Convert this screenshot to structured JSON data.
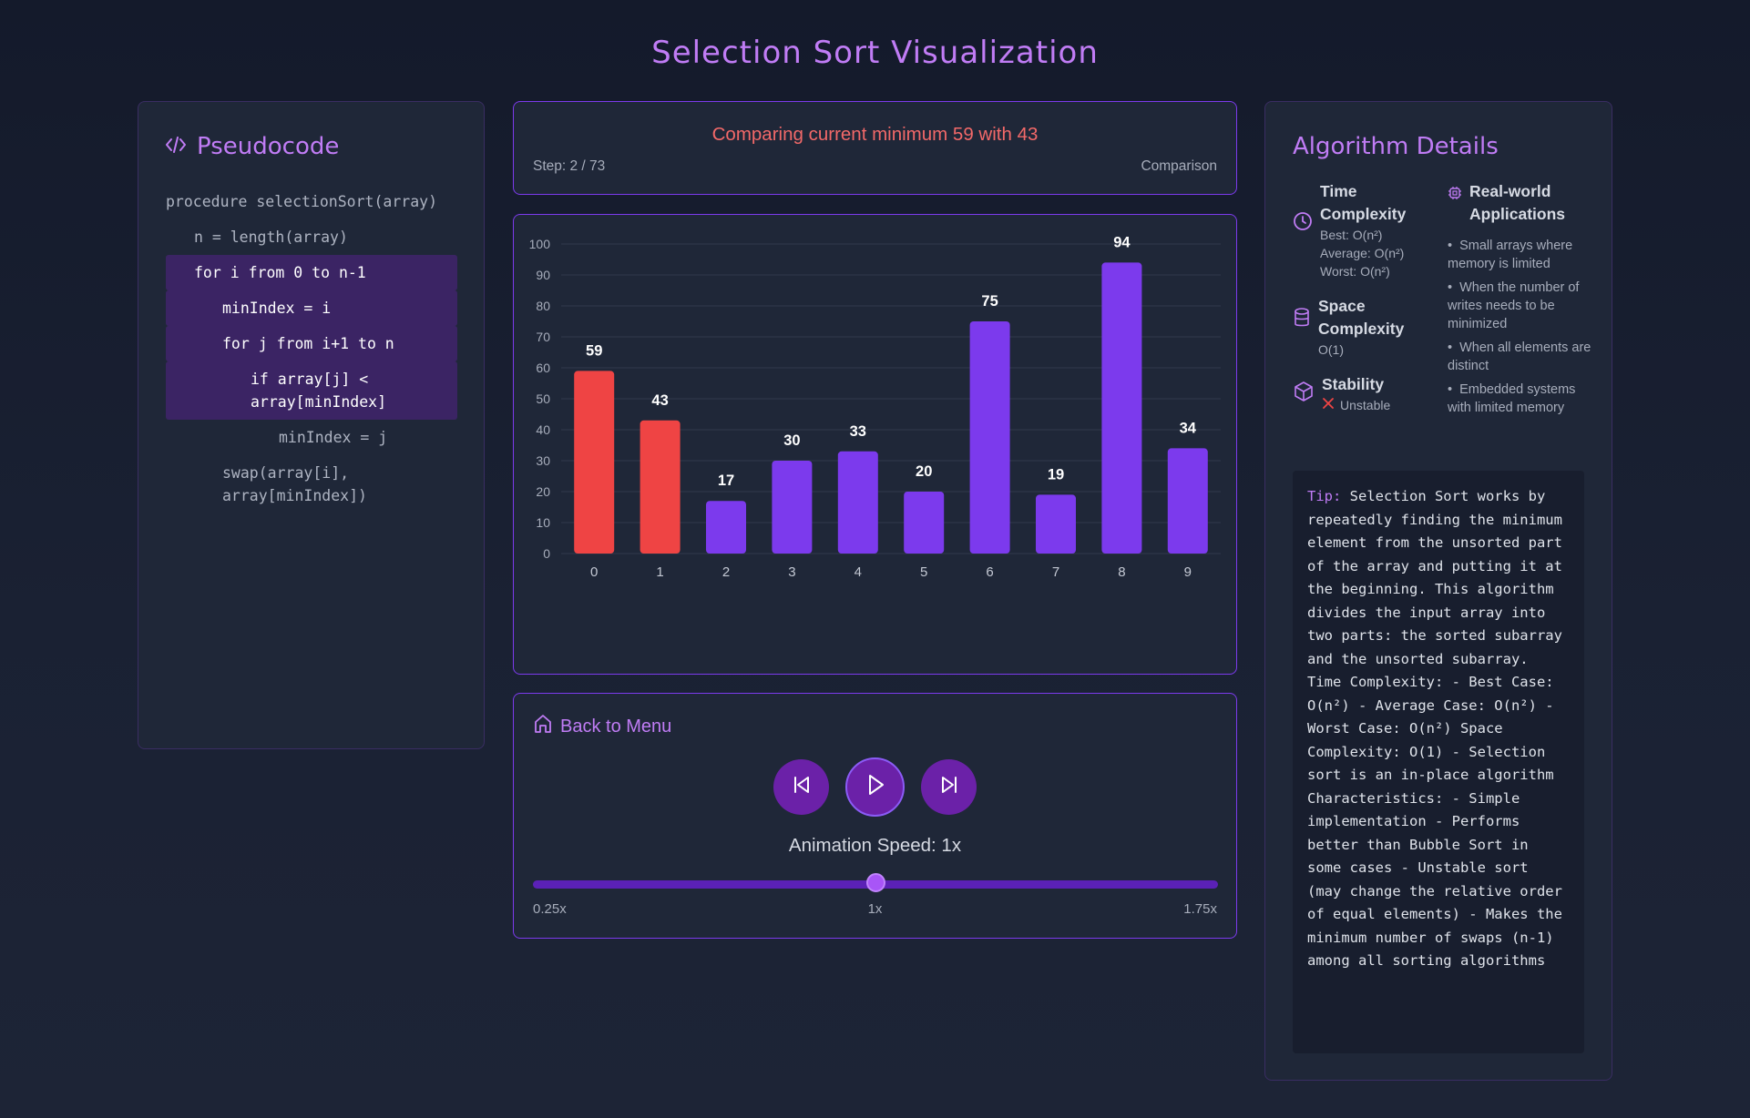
{
  "page_title": "Selection Sort Visualization",
  "pseudocode": {
    "title": "Pseudocode",
    "lines": [
      {
        "text": "procedure selectionSort(array)",
        "indent": 0,
        "highlight": false
      },
      {
        "text": "n = length(array)",
        "indent": 1,
        "highlight": false
      },
      {
        "text": "for i from 0 to n-1",
        "indent": 1,
        "highlight": true
      },
      {
        "text": "minIndex = i",
        "indent": 2,
        "highlight": true
      },
      {
        "text": "for j from i+1 to n",
        "indent": 2,
        "highlight": true
      },
      {
        "text": "if array[j] <\narray[minIndex]",
        "indent": 3,
        "highlight": true
      },
      {
        "text": "minIndex = j",
        "indent": 4,
        "highlight": false
      },
      {
        "text": "swap(array[i],\narray[minIndex])",
        "indent": 2,
        "highlight": false
      }
    ]
  },
  "status": {
    "message": "Comparing current minimum 59 with 43",
    "step": "Step: 2 / 73",
    "type": "Comparison"
  },
  "chart_data": {
    "type": "bar",
    "categories": [
      "0",
      "1",
      "2",
      "3",
      "4",
      "5",
      "6",
      "7",
      "8",
      "9"
    ],
    "values": [
      59,
      43,
      17,
      30,
      33,
      20,
      75,
      19,
      94,
      34
    ],
    "highlighted": [
      true,
      true,
      false,
      false,
      false,
      false,
      false,
      false,
      false,
      false
    ],
    "ylim": [
      0,
      100
    ],
    "yticks": [
      0,
      10,
      20,
      30,
      40,
      50,
      60,
      70,
      80,
      90,
      100
    ],
    "grid": true,
    "colors": {
      "highlight": "#ef4444",
      "default": "#7c3aed"
    }
  },
  "controls": {
    "back_label": "Back to Menu",
    "speed_label": "Animation Speed: 1x",
    "speed_min": "0.25x",
    "speed_mid": "1x",
    "speed_max": "1.75x",
    "speed_fraction": 0.5
  },
  "details": {
    "title": "Algorithm Details",
    "time_heading": "Time Complexity",
    "time_best": "Best: O(n²)",
    "time_average": "Average: O(n²)",
    "time_worst": "Worst: O(n²)",
    "space_heading": "Space Complexity",
    "space_value": "O(1)",
    "stability_heading": "Stability",
    "stability_value": "Unstable",
    "apps_heading": "Real-world Applications",
    "apps": [
      "Small arrays where memory is limited",
      "When the number of writes needs to be minimized",
      "When all elements are distinct",
      "Embedded systems with limited memory"
    ],
    "tip_label": "Tip:",
    "tip_text": " Selection Sort works by repeatedly finding the minimum element from the unsorted part of the array and putting it at the beginning. This algorithm divides the input array into two parts: the sorted subarray and the unsorted subarray. Time Complexity: - Best Case: O(n²) - Average Case: O(n²) - Worst Case: O(n²) Space Complexity: O(1) - Selection sort is an in-place algorithm Characteristics: - Simple implementation - Performs better than Bubble Sort in some cases - Unstable sort (may change the relative order of equal elements) - Makes the minimum number of swaps (n-1) among all sorting algorithms"
  },
  "colors": {
    "accent": "#c07cf5",
    "button": "#6b21a8",
    "error": "#f36969"
  }
}
